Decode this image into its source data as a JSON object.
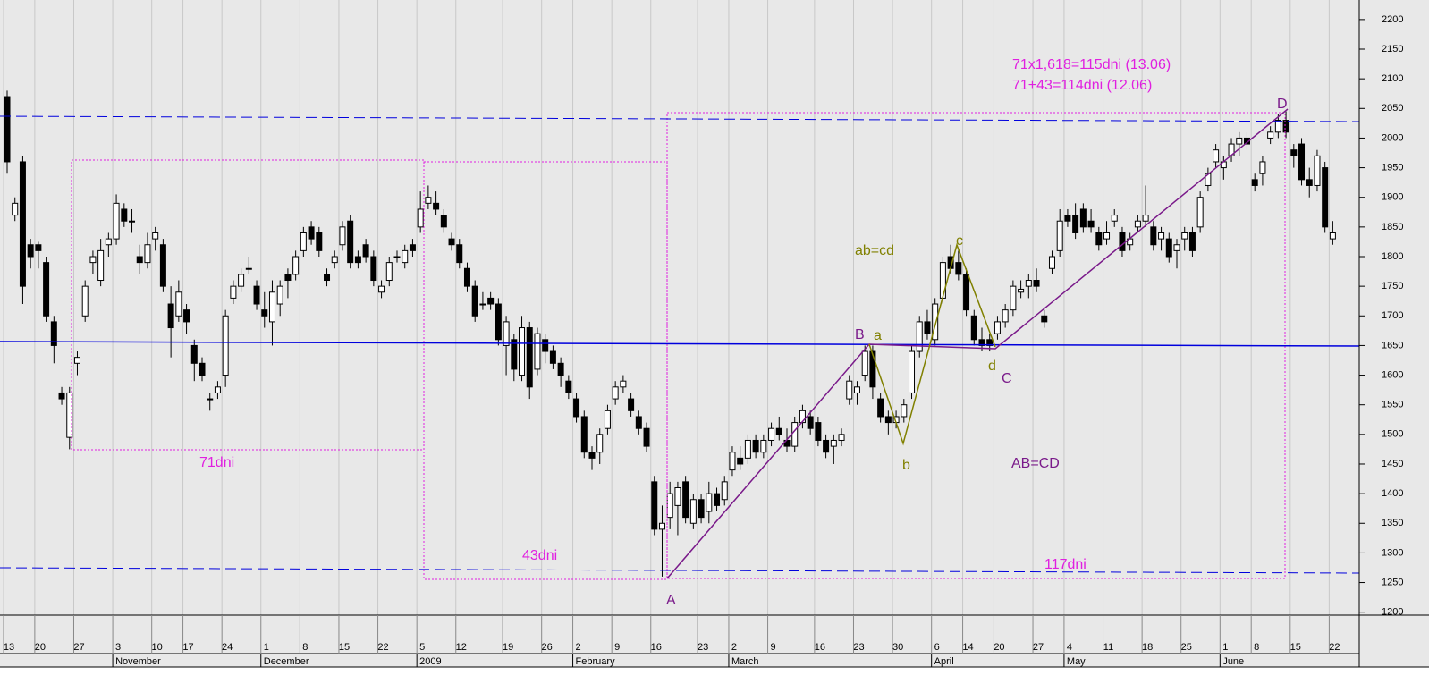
{
  "chart_data": {
    "type": "candlestick",
    "categories": [
      "13",
      null,
      null,
      null,
      "20",
      null,
      null,
      null,
      null,
      "27",
      null,
      null,
      null,
      null,
      "3",
      null,
      null,
      null,
      null,
      "10",
      null,
      null,
      null,
      "17",
      null,
      null,
      null,
      null,
      "24",
      null,
      null,
      null,
      null,
      "1",
      null,
      null,
      null,
      null,
      "8",
      null,
      null,
      null,
      null,
      "15",
      null,
      null,
      null,
      null,
      "22",
      null,
      null,
      null,
      null,
      "5",
      null,
      null,
      null,
      null,
      "12",
      null,
      null,
      null,
      null,
      null,
      "19",
      null,
      null,
      null,
      null,
      "26",
      null,
      null,
      null,
      "2",
      null,
      null,
      null,
      null,
      "9",
      null,
      null,
      null,
      null,
      "16",
      null,
      null,
      null,
      null,
      null,
      "23",
      null,
      null,
      null,
      "2",
      null,
      null,
      null,
      null,
      "9",
      null,
      null,
      null,
      null,
      null,
      "16",
      null,
      null,
      null,
      null,
      "23",
      null,
      null,
      null,
      null,
      "30",
      null,
      null,
      null,
      null,
      "6",
      null,
      null,
      null,
      "14",
      null,
      null,
      null,
      "20",
      null,
      null,
      null,
      null,
      "27",
      null,
      null,
      null,
      "4",
      null,
      null,
      null,
      null,
      "11",
      null,
      null,
      null,
      null,
      "18",
      null,
      null,
      null,
      null,
      "25",
      null,
      null,
      null,
      null,
      "1",
      null,
      null,
      null,
      "8",
      null,
      null,
      null,
      null,
      "15",
      null,
      null,
      null,
      null,
      "22"
    ],
    "ohlc": [
      [
        2070,
        2080,
        1940,
        1960
      ],
      [
        1870,
        1900,
        1860,
        1890
      ],
      [
        1960,
        1970,
        1720,
        1750
      ],
      [
        1820,
        1830,
        1780,
        1800
      ],
      [
        1820,
        1825,
        1780,
        1810
      ],
      [
        1790,
        1800,
        1690,
        1700
      ],
      [
        1690,
        1700,
        1620,
        1650
      ],
      [
        1570,
        1580,
        1550,
        1560
      ],
      [
        1495,
        1580,
        1475,
        1570
      ],
      [
        1620,
        1640,
        1600,
        1630
      ],
      [
        1700,
        1760,
        1690,
        1750
      ],
      [
        1790,
        1810,
        1770,
        1800
      ],
      [
        1760,
        1830,
        1750,
        1810
      ],
      [
        1820,
        1840,
        1800,
        1830
      ],
      [
        1830,
        1905,
        1820,
        1890
      ],
      [
        1880,
        1890,
        1850,
        1860
      ],
      [
        1860,
        1880,
        1840,
        1860
      ],
      [
        1800,
        1820,
        1770,
        1790
      ],
      [
        1790,
        1840,
        1780,
        1820
      ],
      [
        1830,
        1850,
        1810,
        1840
      ],
      [
        1820,
        1830,
        1740,
        1750
      ],
      [
        1720,
        1750,
        1630,
        1680
      ],
      [
        1700,
        1760,
        1690,
        1740
      ],
      [
        1710,
        1720,
        1670,
        1690
      ],
      [
        1650,
        1660,
        1590,
        1620
      ],
      [
        1620,
        1630,
        1590,
        1600
      ],
      [
        1560,
        1570,
        1540,
        1560
      ],
      [
        1570,
        1590,
        1560,
        1580
      ],
      [
        1600,
        1710,
        1580,
        1700
      ],
      [
        1730,
        1760,
        1720,
        1750
      ],
      [
        1750,
        1780,
        1740,
        1770
      ],
      [
        1780,
        1800,
        1770,
        1780
      ],
      [
        1750,
        1760,
        1710,
        1720
      ],
      [
        1710,
        1740,
        1680,
        1700
      ],
      [
        1690,
        1760,
        1650,
        1740
      ],
      [
        1720,
        1760,
        1700,
        1750
      ],
      [
        1770,
        1780,
        1730,
        1760
      ],
      [
        1770,
        1810,
        1760,
        1800
      ],
      [
        1810,
        1850,
        1800,
        1840
      ],
      [
        1850,
        1860,
        1820,
        1830
      ],
      [
        1840,
        1850,
        1800,
        1810
      ],
      [
        1770,
        1780,
        1750,
        1760
      ],
      [
        1790,
        1810,
        1780,
        1800
      ],
      [
        1820,
        1860,
        1810,
        1850
      ],
      [
        1860,
        1870,
        1780,
        1790
      ],
      [
        1800,
        1810,
        1780,
        1790
      ],
      [
        1820,
        1830,
        1790,
        1800
      ],
      [
        1800,
        1810,
        1750,
        1760
      ],
      [
        1740,
        1760,
        1730,
        1750
      ],
      [
        1760,
        1800,
        1750,
        1790
      ],
      [
        1800,
        1810,
        1790,
        1800
      ],
      [
        1790,
        1820,
        1780,
        1810
      ],
      [
        1820,
        1830,
        1800,
        1810
      ],
      [
        1850,
        1910,
        1840,
        1880
      ],
      [
        1890,
        1920,
        1880,
        1900
      ],
      [
        1890,
        1910,
        1870,
        1880
      ],
      [
        1870,
        1880,
        1840,
        1850
      ],
      [
        1830,
        1840,
        1810,
        1820
      ],
      [
        1820,
        1830,
        1780,
        1790
      ],
      [
        1780,
        1790,
        1740,
        1750
      ],
      [
        1750,
        1760,
        1690,
        1700
      ],
      [
        1720,
        1740,
        1710,
        1720
      ],
      [
        1730,
        1740,
        1710,
        1720
      ],
      [
        1720,
        1730,
        1650,
        1660
      ],
      [
        1650,
        1700,
        1600,
        1690
      ],
      [
        1660,
        1670,
        1590,
        1610
      ],
      [
        1600,
        1700,
        1590,
        1680
      ],
      [
        1680,
        1690,
        1560,
        1580
      ],
      [
        1610,
        1680,
        1600,
        1670
      ],
      [
        1660,
        1670,
        1620,
        1640
      ],
      [
        1640,
        1650,
        1610,
        1620
      ],
      [
        1620,
        1630,
        1580,
        1600
      ],
      [
        1590,
        1600,
        1560,
        1570
      ],
      [
        1560,
        1570,
        1520,
        1530
      ],
      [
        1530,
        1540,
        1460,
        1470
      ],
      [
        1470,
        1480,
        1440,
        1460
      ],
      [
        1470,
        1510,
        1450,
        1500
      ],
      [
        1510,
        1550,
        1500,
        1540
      ],
      [
        1560,
        1590,
        1550,
        1580
      ],
      [
        1580,
        1600,
        1570,
        1590
      ],
      [
        1560,
        1570,
        1530,
        1540
      ],
      [
        1530,
        1540,
        1500,
        1510
      ],
      [
        1510,
        1520,
        1470,
        1480
      ],
      [
        1420,
        1430,
        1330,
        1340
      ],
      [
        1340,
        1380,
        1260,
        1350
      ],
      [
        1360,
        1420,
        1340,
        1400
      ],
      [
        1380,
        1420,
        1330,
        1410
      ],
      [
        1420,
        1430,
        1350,
        1360
      ],
      [
        1350,
        1400,
        1340,
        1390
      ],
      [
        1390,
        1400,
        1350,
        1360
      ],
      [
        1370,
        1420,
        1350,
        1400
      ],
      [
        1400,
        1410,
        1370,
        1380
      ],
      [
        1390,
        1430,
        1380,
        1420
      ],
      [
        1440,
        1480,
        1430,
        1470
      ],
      [
        1460,
        1480,
        1440,
        1450
      ],
      [
        1460,
        1500,
        1450,
        1490
      ],
      [
        1490,
        1500,
        1460,
        1470
      ],
      [
        1470,
        1500,
        1460,
        1490
      ],
      [
        1490,
        1520,
        1480,
        1510
      ],
      [
        1510,
        1530,
        1490,
        1500
      ],
      [
        1490,
        1510,
        1470,
        1480
      ],
      [
        1480,
        1530,
        1470,
        1520
      ],
      [
        1520,
        1550,
        1510,
        1540
      ],
      [
        1530,
        1540,
        1500,
        1510
      ],
      [
        1520,
        1530,
        1480,
        1490
      ],
      [
        1490,
        1500,
        1460,
        1470
      ],
      [
        1480,
        1500,
        1450,
        1490
      ],
      [
        1490,
        1510,
        1480,
        1500
      ],
      [
        1560,
        1600,
        1550,
        1590
      ],
      [
        1570,
        1590,
        1550,
        1580
      ],
      [
        1600,
        1650,
        1590,
        1640
      ],
      [
        1640,
        1650,
        1560,
        1580
      ],
      [
        1560,
        1570,
        1520,
        1530
      ],
      [
        1530,
        1540,
        1500,
        1520
      ],
      [
        1520,
        1540,
        1510,
        1530
      ],
      [
        1530,
        1560,
        1520,
        1550
      ],
      [
        1570,
        1650,
        1560,
        1640
      ],
      [
        1640,
        1700,
        1630,
        1690
      ],
      [
        1690,
        1710,
        1660,
        1670
      ],
      [
        1660,
        1730,
        1650,
        1720
      ],
      [
        1730,
        1800,
        1720,
        1790
      ],
      [
        1800,
        1820,
        1770,
        1780
      ],
      [
        1790,
        1810,
        1760,
        1770
      ],
      [
        1770,
        1780,
        1700,
        1710
      ],
      [
        1700,
        1710,
        1650,
        1660
      ],
      [
        1660,
        1680,
        1640,
        1650
      ],
      [
        1660,
        1670,
        1640,
        1650
      ],
      [
        1670,
        1700,
        1660,
        1690
      ],
      [
        1690,
        1720,
        1680,
        1710
      ],
      [
        1710,
        1760,
        1700,
        1750
      ],
      [
        1740,
        1760,
        1730,
        1745
      ],
      [
        1750,
        1770,
        1730,
        1760
      ],
      [
        1760,
        1780,
        1740,
        1750
      ],
      [
        1700,
        1710,
        1680,
        1690
      ],
      [
        1780,
        1810,
        1770,
        1800
      ],
      [
        1810,
        1880,
        1800,
        1860
      ],
      [
        1870,
        1880,
        1850,
        1860
      ],
      [
        1870,
        1890,
        1830,
        1840
      ],
      [
        1880,
        1890,
        1840,
        1850
      ],
      [
        1860,
        1880,
        1840,
        1850
      ],
      [
        1840,
        1850,
        1810,
        1820
      ],
      [
        1830,
        1860,
        1820,
        1840
      ],
      [
        1860,
        1880,
        1850,
        1870
      ],
      [
        1840,
        1850,
        1800,
        1810
      ],
      [
        1820,
        1840,
        1810,
        1830
      ],
      [
        1850,
        1870,
        1840,
        1860
      ],
      [
        1860,
        1920,
        1850,
        1870
      ],
      [
        1850,
        1860,
        1810,
        1820
      ],
      [
        1830,
        1850,
        1810,
        1840
      ],
      [
        1830,
        1840,
        1790,
        1800
      ],
      [
        1810,
        1830,
        1780,
        1820
      ],
      [
        1830,
        1850,
        1810,
        1840
      ],
      [
        1840,
        1850,
        1800,
        1810
      ],
      [
        1850,
        1910,
        1840,
        1900
      ],
      [
        1920,
        1950,
        1910,
        1940
      ],
      [
        1960,
        1990,
        1950,
        1980
      ],
      [
        1950,
        1970,
        1930,
        1960
      ],
      [
        1970,
        2000,
        1960,
        1990
      ],
      [
        1990,
        2010,
        1970,
        2000
      ],
      [
        2000,
        2010,
        1980,
        1990
      ],
      [
        1930,
        1940,
        1910,
        1920
      ],
      [
        1940,
        1970,
        1920,
        1960
      ],
      [
        2000,
        2020,
        1990,
        2010
      ],
      [
        2010,
        2040,
        2000,
        2030
      ],
      [
        2030,
        2045,
        2000,
        2010
      ],
      [
        1980,
        1990,
        1950,
        1970
      ],
      [
        1990,
        2000,
        1920,
        1930
      ],
      [
        1930,
        1950,
        1900,
        1920
      ],
      [
        1920,
        1980,
        1910,
        1970
      ],
      [
        1950,
        1960,
        1840,
        1850
      ],
      [
        1830,
        1860,
        1820,
        1840
      ]
    ],
    "month_labels": [
      "November",
      "December",
      "2009",
      "February",
      "March",
      "April",
      "May",
      "June"
    ],
    "ylim": [
      1195,
      2233
    ],
    "yticks": [
      1200,
      1250,
      1300,
      1350,
      1400,
      1450,
      1500,
      1550,
      1600,
      1650,
      1700,
      1750,
      1800,
      1850,
      1900,
      1950,
      2000,
      2050,
      2100,
      2150,
      2200
    ],
    "annotations": {
      "projection_1": "71x1,618=115dni (13.06)",
      "projection_2": "71+43=114dni (12.06)",
      "point_A": "A",
      "point_B": "B",
      "point_C": "C",
      "point_D": "D",
      "point_a": "a",
      "point_b": "b",
      "point_c": "c",
      "point_d": "d",
      "ab_cd": "ab=cd",
      "AB_CD": "AB=CD",
      "span_1": "71dni",
      "span_2": "43dni",
      "span_3": "117dni"
    }
  }
}
